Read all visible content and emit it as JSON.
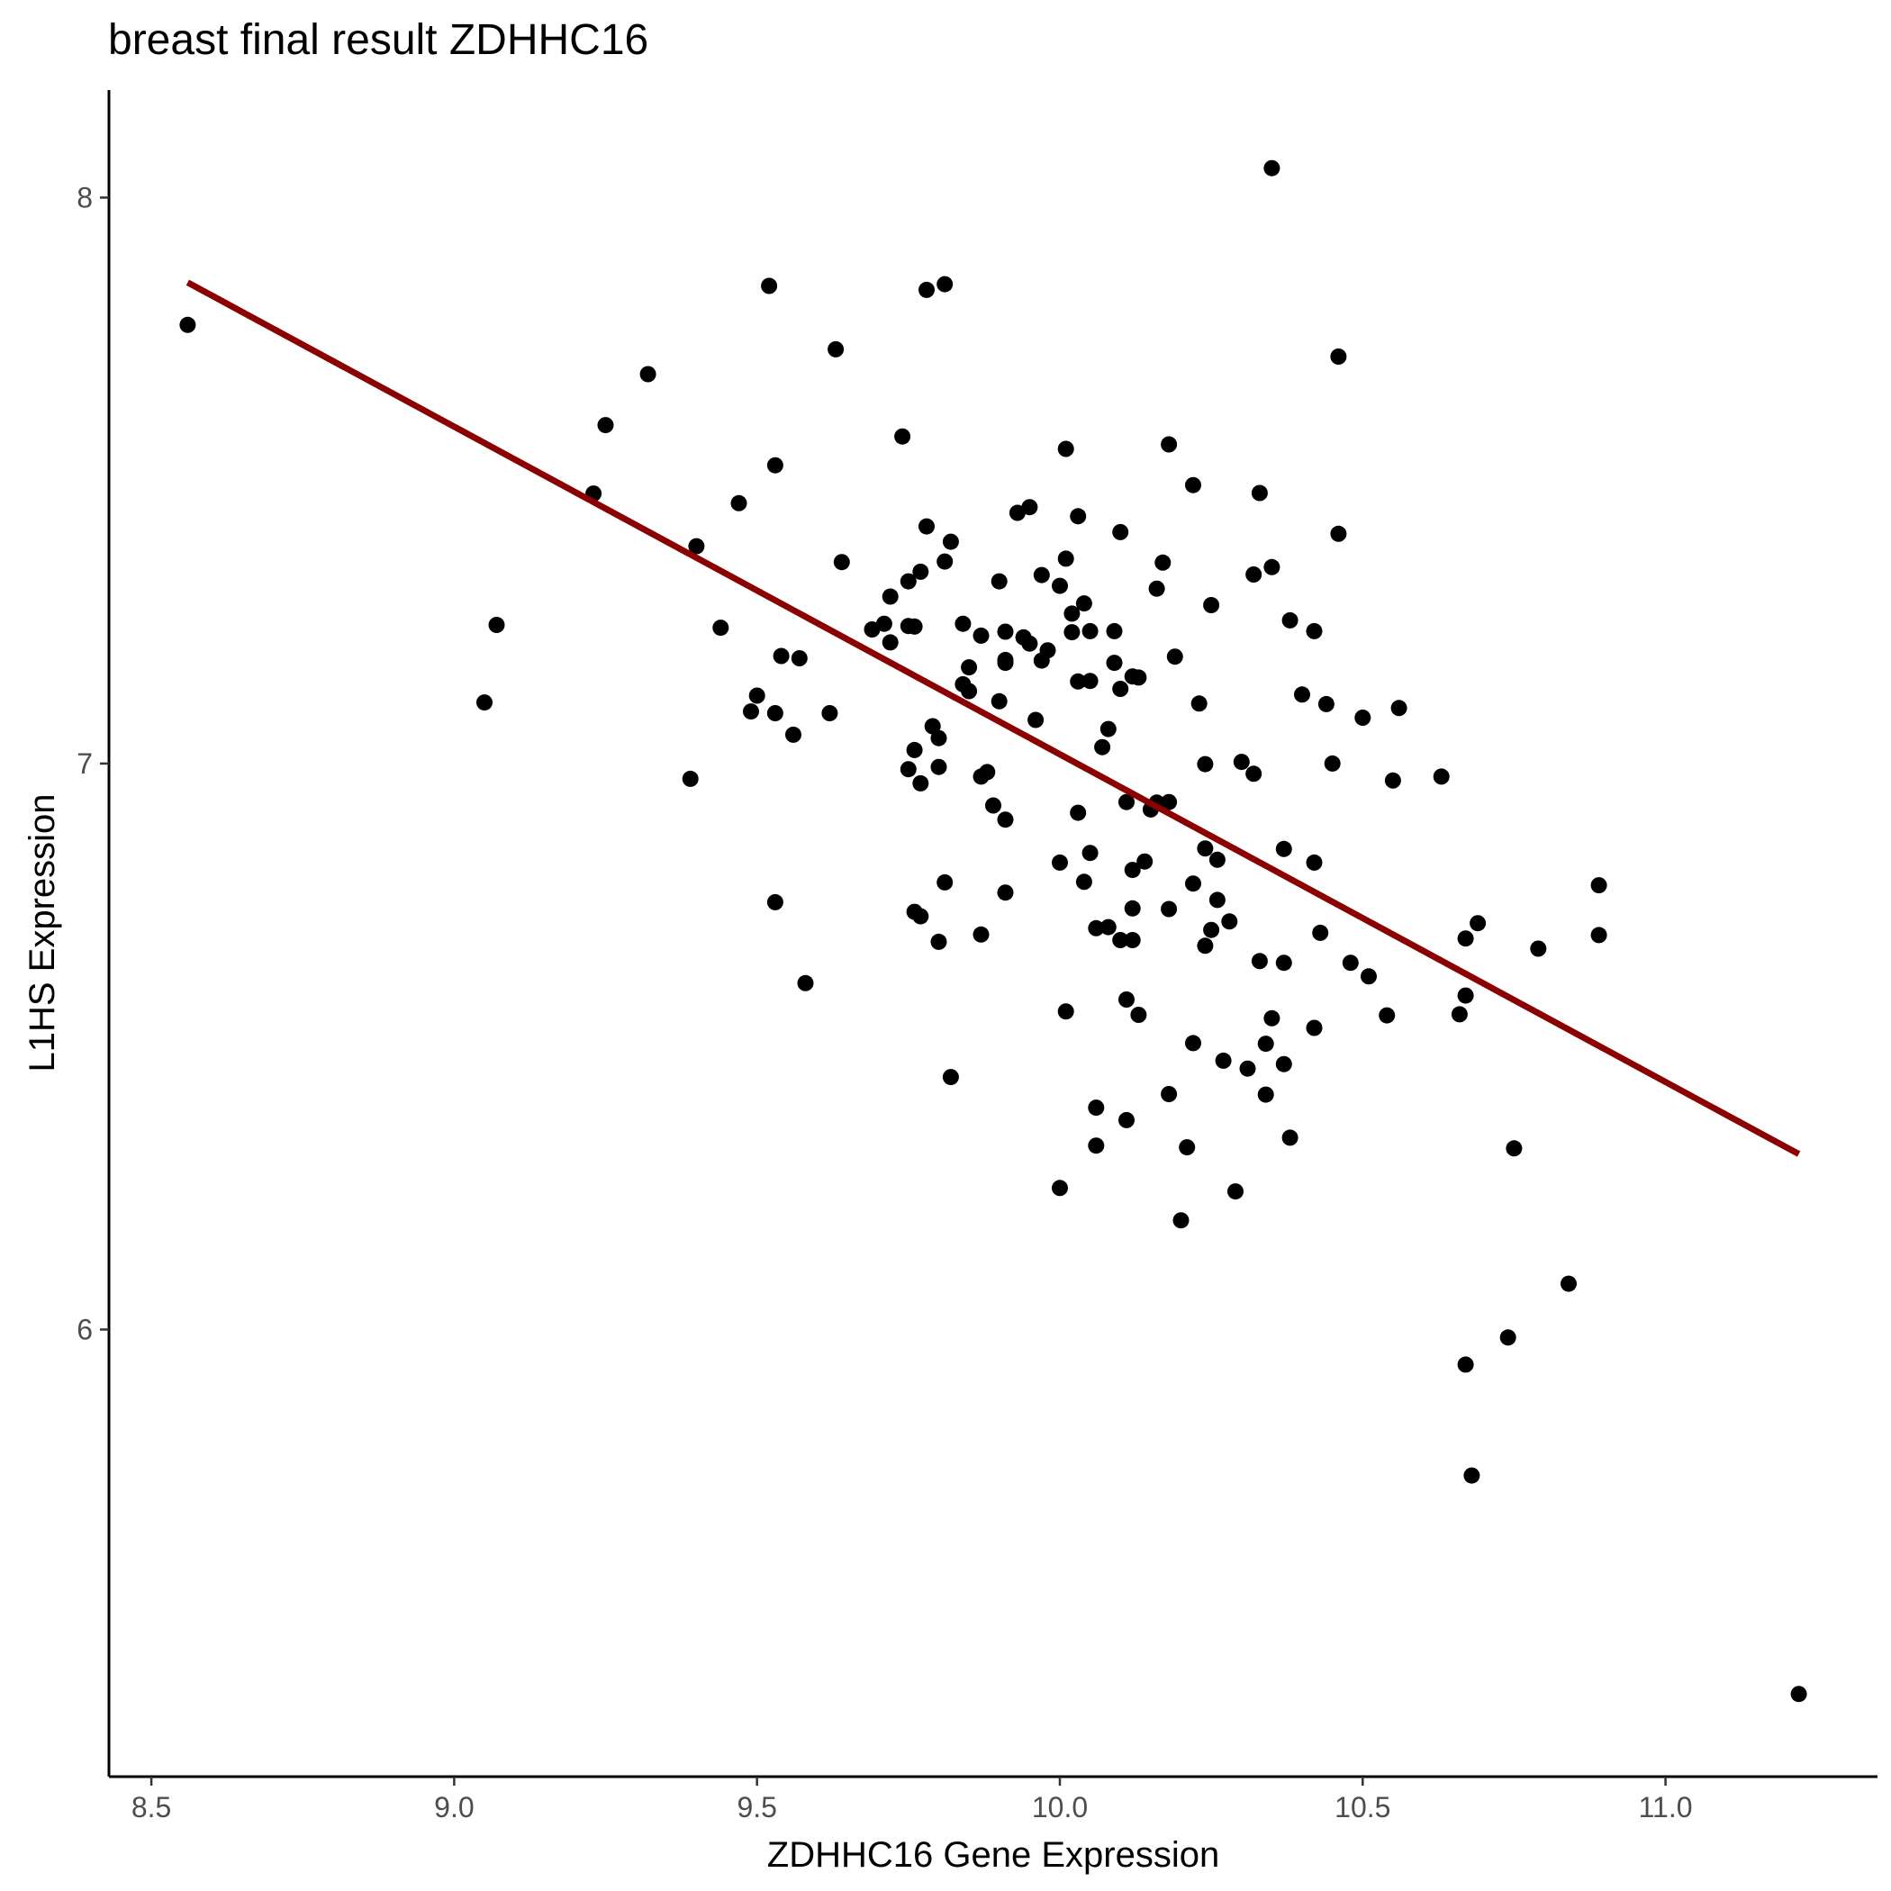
{
  "chart_data": {
    "type": "scatter",
    "title": "breast final result ZDHHC16",
    "xlabel": "ZDHHC16 Gene Expression",
    "ylabel": "L1HS Expression",
    "xlim": [
      8.43,
      11.35
    ],
    "ylim": [
      5.21,
      8.19
    ],
    "x_ticks": [
      8.5,
      9.0,
      9.5,
      10.0,
      10.5,
      11.0
    ],
    "x_tick_labels": [
      "8.5",
      "9.0",
      "9.5",
      "10.0",
      "10.5",
      "11.0"
    ],
    "y_ticks": [
      6,
      7,
      8
    ],
    "y_tick_labels": [
      "6",
      "7",
      "8"
    ],
    "grid": false,
    "legend": "none",
    "point_color": "#000000",
    "fit_line": {
      "x": [
        8.56,
        11.22
      ],
      "y": [
        7.85,
        6.31
      ],
      "color": "#8b0000"
    },
    "points": [
      [
        8.56,
        7.775
      ],
      [
        9.05,
        7.108
      ],
      [
        9.07,
        7.245
      ],
      [
        9.23,
        7.477
      ],
      [
        9.25,
        7.598
      ],
      [
        9.32,
        7.688
      ],
      [
        9.39,
        6.973
      ],
      [
        9.4,
        7.384
      ],
      [
        9.44,
        7.24
      ],
      [
        9.47,
        7.46
      ],
      [
        9.49,
        7.092
      ],
      [
        9.5,
        7.12
      ],
      [
        9.52,
        7.844
      ],
      [
        9.53,
        7.527
      ],
      [
        9.53,
        6.755
      ],
      [
        9.53,
        7.089
      ],
      [
        9.54,
        7.19
      ],
      [
        9.56,
        7.051
      ],
      [
        9.57,
        7.186
      ],
      [
        9.58,
        6.612
      ],
      [
        9.62,
        7.089
      ],
      [
        9.63,
        7.732
      ],
      [
        9.64,
        7.356
      ],
      [
        9.69,
        7.237
      ],
      [
        9.71,
        7.247
      ],
      [
        9.72,
        7.214
      ],
      [
        9.72,
        7.295
      ],
      [
        9.74,
        7.578
      ],
      [
        9.75,
        7.243
      ],
      [
        9.75,
        6.99
      ],
      [
        9.75,
        7.322
      ],
      [
        9.76,
        6.738
      ],
      [
        9.76,
        7.024
      ],
      [
        9.76,
        7.242
      ],
      [
        9.77,
        6.73
      ],
      [
        9.77,
        7.339
      ],
      [
        9.77,
        6.965
      ],
      [
        9.78,
        7.419
      ],
      [
        9.78,
        7.837
      ],
      [
        9.79,
        7.066
      ],
      [
        9.8,
        6.994
      ],
      [
        9.8,
        7.045
      ],
      [
        9.8,
        6.685
      ],
      [
        9.81,
        7.847
      ],
      [
        9.81,
        7.357
      ],
      [
        9.81,
        6.79
      ],
      [
        9.82,
        6.446
      ],
      [
        9.82,
        7.392
      ],
      [
        9.84,
        7.14
      ],
      [
        9.84,
        7.247
      ],
      [
        9.85,
        7.128
      ],
      [
        9.85,
        7.17
      ],
      [
        9.87,
        6.698
      ],
      [
        9.87,
        6.977
      ],
      [
        9.87,
        7.226
      ],
      [
        9.88,
        6.985
      ],
      [
        9.89,
        6.926
      ],
      [
        9.9,
        7.322
      ],
      [
        9.9,
        7.11
      ],
      [
        9.91,
        6.772
      ],
      [
        9.91,
        6.901
      ],
      [
        9.91,
        7.183
      ],
      [
        9.91,
        7.233
      ],
      [
        9.91,
        7.178
      ],
      [
        9.93,
        7.443
      ],
      [
        9.94,
        7.223
      ],
      [
        9.95,
        7.212
      ],
      [
        9.95,
        7.453
      ],
      [
        9.96,
        7.077
      ],
      [
        9.97,
        7.333
      ],
      [
        9.97,
        7.182
      ],
      [
        9.98,
        7.2
      ],
      [
        10.0,
        7.314
      ],
      [
        10.0,
        6.25
      ],
      [
        10.0,
        6.825
      ],
      [
        10.01,
        7.556
      ],
      [
        10.01,
        7.362
      ],
      [
        10.01,
        6.562
      ],
      [
        10.02,
        7.232
      ],
      [
        10.02,
        7.265
      ],
      [
        10.03,
        7.437
      ],
      [
        10.03,
        6.913
      ],
      [
        10.03,
        7.145
      ],
      [
        10.04,
        7.283
      ],
      [
        10.04,
        6.791
      ],
      [
        10.05,
        6.842
      ],
      [
        10.05,
        7.146
      ],
      [
        10.05,
        7.234
      ],
      [
        10.06,
        6.392
      ],
      [
        10.06,
        6.325
      ],
      [
        10.06,
        6.709
      ],
      [
        10.07,
        7.029
      ],
      [
        10.08,
        7.061
      ],
      [
        10.08,
        6.711
      ],
      [
        10.09,
        7.178
      ],
      [
        10.09,
        7.234
      ],
      [
        10.1,
        7.132
      ],
      [
        10.1,
        6.688
      ],
      [
        10.1,
        7.409
      ],
      [
        10.11,
        6.932
      ],
      [
        10.11,
        6.583
      ],
      [
        10.11,
        6.37
      ],
      [
        10.12,
        6.812
      ],
      [
        10.12,
        7.154
      ],
      [
        10.12,
        6.688
      ],
      [
        10.12,
        6.744
      ],
      [
        10.13,
        6.556
      ],
      [
        10.13,
        7.152
      ],
      [
        10.14,
        6.827
      ],
      [
        10.15,
        6.919
      ],
      [
        10.16,
        6.931
      ],
      [
        10.16,
        7.309
      ],
      [
        10.17,
        7.355
      ],
      [
        10.18,
        6.743
      ],
      [
        10.18,
        7.564
      ],
      [
        10.18,
        6.932
      ],
      [
        10.18,
        6.416
      ],
      [
        10.19,
        7.189
      ],
      [
        10.2,
        6.193
      ],
      [
        10.21,
        6.322
      ],
      [
        10.22,
        6.506
      ],
      [
        10.22,
        7.492
      ],
      [
        10.22,
        6.788
      ],
      [
        10.23,
        7.106
      ],
      [
        10.24,
        6.999
      ],
      [
        10.24,
        6.85
      ],
      [
        10.24,
        6.678
      ],
      [
        10.25,
        7.28
      ],
      [
        10.25,
        6.706
      ],
      [
        10.26,
        6.759
      ],
      [
        10.26,
        6.83
      ],
      [
        10.27,
        6.475
      ],
      [
        10.28,
        6.721
      ],
      [
        10.29,
        6.244
      ],
      [
        10.3,
        7.003
      ],
      [
        10.31,
        6.461
      ],
      [
        10.32,
        7.334
      ],
      [
        10.32,
        6.982
      ],
      [
        10.33,
        6.651
      ],
      [
        10.33,
        7.478
      ],
      [
        10.34,
        6.505
      ],
      [
        10.34,
        6.415
      ],
      [
        10.35,
        8.052
      ],
      [
        10.35,
        6.55
      ],
      [
        10.35,
        7.347
      ],
      [
        10.37,
        6.849
      ],
      [
        10.37,
        6.469
      ],
      [
        10.37,
        6.648
      ],
      [
        10.38,
        6.339
      ],
      [
        10.38,
        7.253
      ],
      [
        10.4,
        7.122
      ],
      [
        10.42,
        6.533
      ],
      [
        10.42,
        6.825
      ],
      [
        10.42,
        7.234
      ],
      [
        10.43,
        6.701
      ],
      [
        10.44,
        7.105
      ],
      [
        10.45,
        7.0
      ],
      [
        10.46,
        7.406
      ],
      [
        10.46,
        7.719
      ],
      [
        10.48,
        6.648
      ],
      [
        10.5,
        7.081
      ],
      [
        10.51,
        6.624
      ],
      [
        10.54,
        6.555
      ],
      [
        10.55,
        6.97
      ],
      [
        10.56,
        7.098
      ],
      [
        10.63,
        6.977
      ],
      [
        10.66,
        6.557
      ],
      [
        10.67,
        5.938
      ],
      [
        10.67,
        6.691
      ],
      [
        10.67,
        6.59
      ],
      [
        10.68,
        5.742
      ],
      [
        10.69,
        6.718
      ],
      [
        10.74,
        5.986
      ],
      [
        10.75,
        6.32
      ],
      [
        10.79,
        6.673
      ],
      [
        10.84,
        6.081
      ],
      [
        10.89,
        6.697
      ],
      [
        10.89,
        6.785
      ],
      [
        11.22,
        5.356
      ]
    ]
  }
}
